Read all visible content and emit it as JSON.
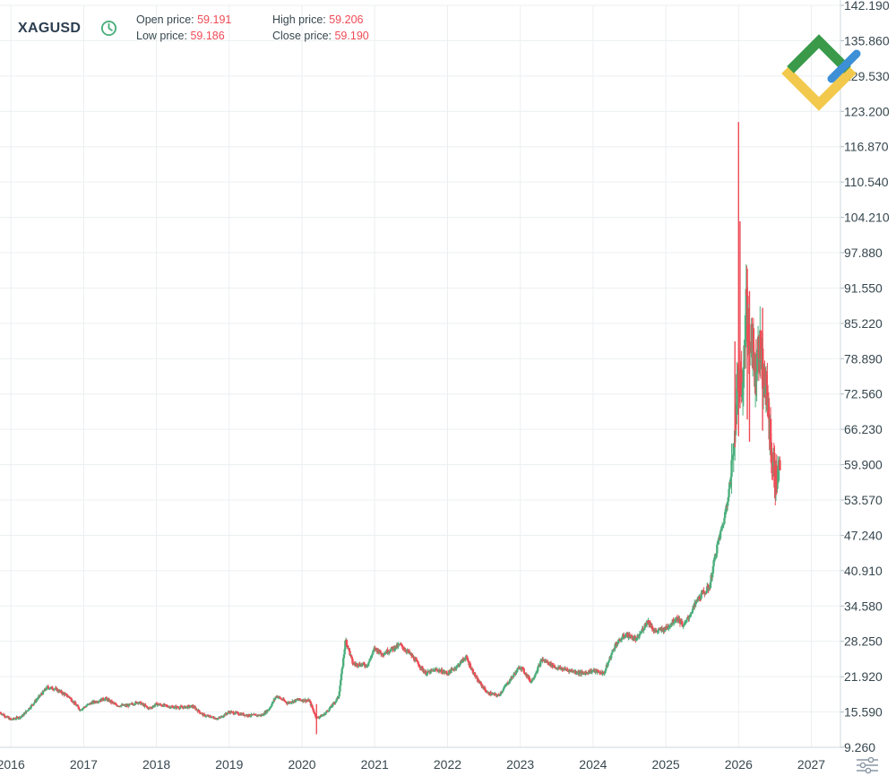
{
  "header": {
    "symbol": "XAGUSD",
    "open_label": "Open price:",
    "open_value": "59.191",
    "high_label": "High price:",
    "high_value": "59.206",
    "low_label": "Low price:",
    "low_value": "59.186",
    "close_label": "Close price:",
    "close_value": "59.190",
    "icons": [
      "clock-icon",
      "settings-sliders-icon"
    ]
  },
  "colors": {
    "up": "#4caf7d",
    "down": "#ef4b56",
    "grid": "#eceff1",
    "axis_text": "#37474f",
    "logo_green": "#3a9a4a",
    "logo_yellow": "#f2c94c",
    "logo_blue": "#3d8fd6"
  },
  "chart_data": {
    "type": "candlestick",
    "title": "",
    "xlabel": "",
    "ylabel": "",
    "x_ticks": [
      "2016",
      "2017",
      "2018",
      "2019",
      "2020",
      "2021",
      "2022",
      "2023",
      "2024",
      "2025",
      "2026",
      "2027"
    ],
    "y_ticks": [
      "142.190",
      "135.860",
      "129.530",
      "123.200",
      "116.870",
      "110.540",
      "104.210",
      "97.880",
      "91.550",
      "85.220",
      "78.890",
      "72.560",
      "66.230",
      "59.900",
      "53.570",
      "47.240",
      "40.910",
      "34.580",
      "28.250",
      "21.920",
      "15.590",
      "9.260"
    ],
    "ylim": [
      9.26,
      142.19
    ],
    "xlim": [
      2015.85,
      2027.4
    ],
    "grid": true,
    "y_axis_position": "right",
    "last_bar": {
      "open": 59.191,
      "high": 59.206,
      "low": 59.186,
      "close": 59.19
    },
    "series": [
      {
        "path": [
          [
            2015.85,
            15.5
          ],
          [
            2016.0,
            14.2
          ],
          [
            2016.15,
            14.8
          ],
          [
            2016.3,
            17.0
          ],
          [
            2016.5,
            20.0
          ],
          [
            2016.6,
            19.8
          ],
          [
            2016.8,
            18.3
          ],
          [
            2016.95,
            16.0
          ],
          [
            2017.1,
            17.2
          ],
          [
            2017.3,
            18.0
          ],
          [
            2017.45,
            16.8
          ],
          [
            2017.6,
            16.7
          ],
          [
            2017.75,
            17.4
          ],
          [
            2017.9,
            16.2
          ],
          [
            2018.0,
            17.0
          ],
          [
            2018.2,
            16.5
          ],
          [
            2018.35,
            16.4
          ],
          [
            2018.5,
            16.6
          ],
          [
            2018.65,
            15.0
          ],
          [
            2018.85,
            14.4
          ],
          [
            2019.0,
            15.6
          ],
          [
            2019.25,
            15.0
          ],
          [
            2019.45,
            15.0
          ],
          [
            2019.55,
            16.2
          ],
          [
            2019.65,
            18.5
          ],
          [
            2019.8,
            17.2
          ],
          [
            2019.95,
            17.8
          ],
          [
            2020.1,
            17.6
          ],
          [
            2020.2,
            14.5
          ],
          [
            2020.3,
            15.1
          ],
          [
            2020.4,
            16.5
          ],
          [
            2020.5,
            18.2
          ],
          [
            2020.55,
            23.0
          ],
          [
            2020.6,
            28.6
          ],
          [
            2020.7,
            24.2
          ],
          [
            2020.9,
            24.0
          ],
          [
            2021.0,
            27.0
          ],
          [
            2021.1,
            26.0
          ],
          [
            2021.35,
            27.6
          ],
          [
            2021.5,
            25.8
          ],
          [
            2021.7,
            22.5
          ],
          [
            2021.85,
            23.2
          ],
          [
            2022.0,
            22.5
          ],
          [
            2022.15,
            24.0
          ],
          [
            2022.25,
            25.5
          ],
          [
            2022.4,
            21.5
          ],
          [
            2022.55,
            19.0
          ],
          [
            2022.7,
            18.5
          ],
          [
            2022.85,
            21.2
          ],
          [
            2023.0,
            23.8
          ],
          [
            2023.15,
            21.0
          ],
          [
            2023.3,
            25.0
          ],
          [
            2023.5,
            23.5
          ],
          [
            2023.7,
            23.0
          ],
          [
            2023.85,
            22.5
          ],
          [
            2024.0,
            23.0
          ],
          [
            2024.15,
            22.5
          ],
          [
            2024.3,
            27.5
          ],
          [
            2024.45,
            29.5
          ],
          [
            2024.6,
            28.5
          ],
          [
            2024.75,
            32.0
          ],
          [
            2024.85,
            30.0
          ],
          [
            2025.0,
            30.5
          ],
          [
            2025.15,
            32.5
          ],
          [
            2025.25,
            31.0
          ],
          [
            2025.45,
            36.0
          ],
          [
            2025.6,
            38.0
          ],
          [
            2025.7,
            45.0
          ],
          [
            2025.8,
            50.0
          ],
          [
            2025.9,
            58.0
          ],
          [
            2025.97,
            72.0
          ],
          [
            2026.02,
            78.0
          ],
          [
            2026.06,
            72.0
          ],
          [
            2026.1,
            90.0
          ],
          [
            2026.14,
            80.0
          ],
          [
            2026.18,
            85.0
          ],
          [
            2026.22,
            76.0
          ],
          [
            2026.28,
            82.0
          ],
          [
            2026.35,
            75.0
          ],
          [
            2026.4,
            71.0
          ],
          [
            2026.45,
            62.0
          ],
          [
            2026.5,
            57.0
          ],
          [
            2026.57,
            59.19
          ]
        ]
      }
    ],
    "spikes": [
      {
        "x": 2026.0,
        "high": 121.3,
        "low": 65.0
      },
      {
        "x": 2026.02,
        "high": 103.5,
        "low": 70.0
      },
      {
        "x": 2026.12,
        "high": 95.0,
        "low": 68.0
      },
      {
        "x": 2026.15,
        "high": 91.0,
        "low": 64.0
      },
      {
        "x": 2026.33,
        "high": 88.0,
        "low": 66.0
      },
      {
        "x": 2025.95,
        "high": 82.0,
        "low": 63.0
      },
      {
        "x": 2026.5,
        "high": 62.0,
        "low": 55.0
      },
      {
        "x": 2026.52,
        "high": 60.0,
        "low": 54.5
      },
      {
        "x": 2020.2,
        "high": 17.0,
        "low": 11.6
      }
    ]
  }
}
